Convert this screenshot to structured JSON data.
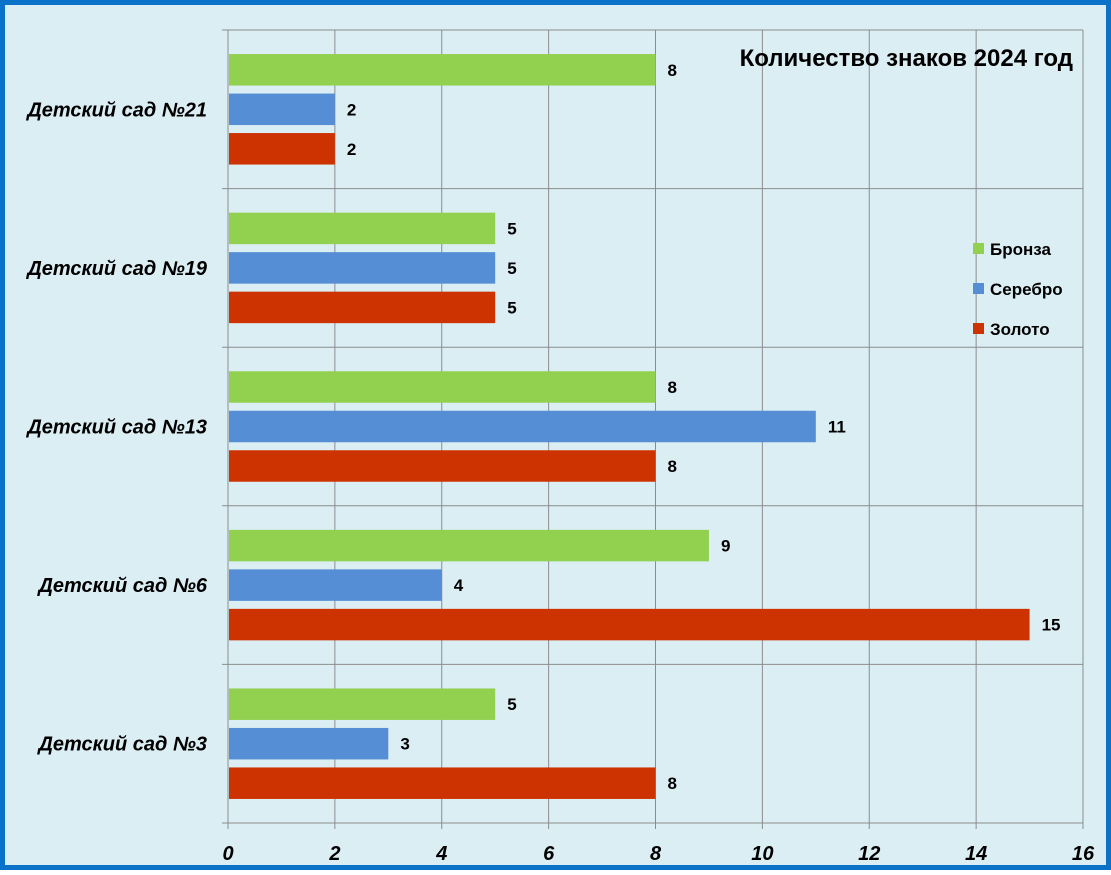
{
  "chart_data": {
    "type": "bar",
    "orientation": "horizontal",
    "title": "Количество знаков 2024 год",
    "categories": [
      "Детский сад №21",
      "Детский сад №19",
      "Детский сад №13",
      "Детский сад №6",
      "Детский сад №3"
    ],
    "series": [
      {
        "name": "Бронза",
        "color": "#92d050",
        "values": [
          8,
          5,
          8,
          9,
          5
        ]
      },
      {
        "name": "Серебро",
        "color": "#558ed5",
        "values": [
          2,
          5,
          11,
          4,
          3
        ]
      },
      {
        "name": "Золото",
        "color": "#cc3300",
        "values": [
          2,
          5,
          8,
          15,
          8
        ]
      }
    ],
    "xlim": [
      0,
      16
    ],
    "xticks": [
      "0",
      "2",
      "4",
      "6",
      "8",
      "10",
      "12",
      "14",
      "16"
    ],
    "grid": true,
    "legend_position": "right",
    "data_labels": true
  },
  "colors": {
    "frame_border": "#0a72c8",
    "background": "#dbeef4",
    "gridline": "#8c8c8c"
  }
}
